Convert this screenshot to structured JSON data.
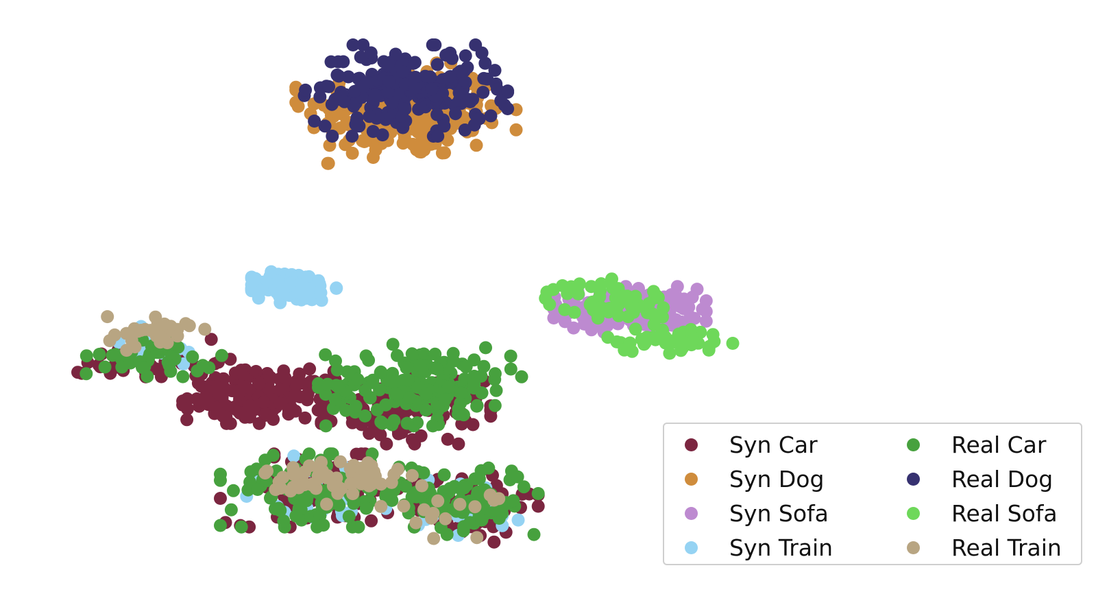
{
  "chart_data": {
    "type": "scatter",
    "title": "",
    "xlabel": "",
    "ylabel": "",
    "axes_visible": false,
    "grid": false,
    "legend_position": "bottom-right",
    "legend_columns": 2,
    "series": [
      {
        "name": "Syn Car",
        "color": "#7b2640",
        "clusters": [
          {
            "center": [
              37,
              -5
            ],
            "spread": [
              9,
              6
            ],
            "count": 170
          },
          {
            "center": [
              58,
              -8
            ],
            "spread": [
              10,
              8
            ],
            "count": 120
          },
          {
            "center": [
              46,
              -30
            ],
            "spread": [
              12,
              8
            ],
            "count": 90
          },
          {
            "center": [
              66,
              -34
            ],
            "spread": [
              9,
              8
            ],
            "count": 80
          },
          {
            "center": [
              22,
              4
            ],
            "spread": [
              9,
              5
            ],
            "count": 40
          }
        ]
      },
      {
        "name": "Syn Dog",
        "color": "#cf8c3c",
        "clusters": [
          {
            "center": [
              58,
              70
            ],
            "spread": [
              13,
              11
            ],
            "count": 240
          }
        ]
      },
      {
        "name": "Syn Sofa",
        "color": "#bd8ad0",
        "clusters": [
          {
            "center": [
              90,
              18
            ],
            "spread": [
              9,
              5
            ],
            "count": 170
          }
        ]
      },
      {
        "name": "Syn Train",
        "color": "#95d3f3",
        "clusters": [
          {
            "center": [
              42,
              24
            ],
            "spread": [
              5,
              3.5
            ],
            "count": 110
          },
          {
            "center": [
              22,
              8
            ],
            "spread": [
              7,
              5
            ],
            "count": 25
          },
          {
            "center": [
              46,
              -30
            ],
            "spread": [
              12,
              8
            ],
            "count": 25
          },
          {
            "center": [
              66,
              -34
            ],
            "spread": [
              9,
              8
            ],
            "count": 20
          }
        ]
      },
      {
        "name": "Real Car",
        "color": "#47a13e",
        "clusters": [
          {
            "center": [
              60,
              -2
            ],
            "spread": [
              12,
              9
            ],
            "count": 170
          },
          {
            "center": [
              46,
              -30
            ],
            "spread": [
              12,
              8
            ],
            "count": 130
          },
          {
            "center": [
              66,
              -32
            ],
            "spread": [
              9,
              8
            ],
            "count": 90
          },
          {
            "center": [
              22,
              5
            ],
            "spread": [
              8,
              4
            ],
            "count": 40
          }
        ]
      },
      {
        "name": "Real Dog",
        "color": "#363170",
        "clusters": [
          {
            "center": [
              58,
              76
            ],
            "spread": [
              12,
              10
            ],
            "count": 210
          }
        ]
      },
      {
        "name": "Real Sofa",
        "color": "#6ed85a",
        "clusters": [
          {
            "center": [
              87,
              20
            ],
            "spread": [
              8,
              5
            ],
            "count": 60
          },
          {
            "center": [
              95,
              10
            ],
            "spread": [
              8,
              3
            ],
            "count": 40
          }
        ]
      },
      {
        "name": "Real Train",
        "color": "#b8a582",
        "clusters": [
          {
            "center": [
              48,
              -27
            ],
            "spread": [
              9,
              6
            ],
            "count": 65
          },
          {
            "center": [
              22,
              12
            ],
            "spread": [
              6,
              4
            ],
            "count": 30
          },
          {
            "center": [
              64,
              -36
            ],
            "spread": [
              6,
              6
            ],
            "count": 15
          }
        ]
      }
    ],
    "xlim": [
      0,
      160
    ],
    "ylim": [
      -60,
      100
    ]
  }
}
